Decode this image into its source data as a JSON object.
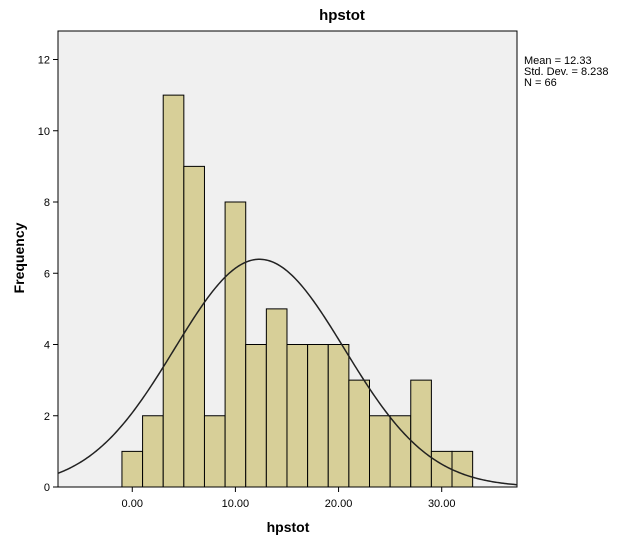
{
  "chart_data": {
    "type": "bar",
    "subtype": "histogram",
    "title": "hpstot",
    "xlabel": "hpstot",
    "ylabel": "Frequency",
    "x_ticks": [
      "0.00",
      "10.00",
      "20.00",
      "30.00"
    ],
    "y_ticks": [
      "0",
      "2",
      "4",
      "6",
      "8",
      "10",
      "12"
    ],
    "bin_width": 2,
    "bins": [
      {
        "center": 0,
        "count": 1
      },
      {
        "center": 2,
        "count": 2
      },
      {
        "center": 4,
        "count": 11
      },
      {
        "center": 6,
        "count": 9
      },
      {
        "center": 8,
        "count": 2
      },
      {
        "center": 10,
        "count": 8
      },
      {
        "center": 12,
        "count": 4
      },
      {
        "center": 14,
        "count": 5
      },
      {
        "center": 16,
        "count": 4
      },
      {
        "center": 18,
        "count": 4
      },
      {
        "center": 20,
        "count": 4
      },
      {
        "center": 22,
        "count": 3
      },
      {
        "center": 24,
        "count": 2
      },
      {
        "center": 26,
        "count": 2
      },
      {
        "center": 28,
        "count": 3
      },
      {
        "center": 30,
        "count": 1
      },
      {
        "center": 32,
        "count": 1
      }
    ],
    "xlim": [
      -7.2,
      37.3
    ],
    "ylim": [
      0,
      12.8
    ],
    "normal_curve": {
      "mean": 12.33,
      "sd": 8.238,
      "n": 66
    },
    "stats": [
      "Mean = 12.33",
      "Std. Dev. = 8.238",
      "N = 66"
    ],
    "colors": {
      "bar_fill": "#d7cf98",
      "bar_stroke": "#000000",
      "plot_background": "#f0f0f0",
      "curve": "#222222"
    }
  }
}
